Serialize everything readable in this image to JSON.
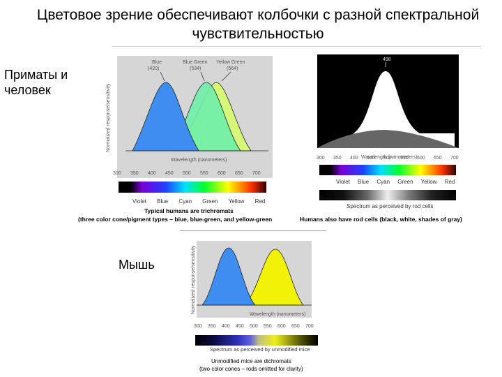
{
  "title": "Цветовое зрение обеспечивают колбочки с разной спектральной чувствительностью",
  "labels": {
    "primates": "Приматы и человек",
    "mouse": "Мышь"
  },
  "panel1": {
    "ylabel": "Normalized response/sensitivity",
    "xlabel": "Wavelength (nanometers)",
    "peaks": [
      {
        "name": "Blue",
        "value": "(420)"
      },
      {
        "name": "Blue Green",
        "value": "(534)"
      },
      {
        "name": "Yellow Green",
        "value": "(564)"
      }
    ],
    "ticks": [
      "300",
      "350",
      "400",
      "450",
      "500",
      "550",
      "600",
      "650",
      "700"
    ],
    "colors": [
      "Violet",
      "Blue",
      "Cyan",
      "Green",
      "Yellow",
      "Red"
    ],
    "caption1": "Typical humans are trichromats",
    "caption2": "(three color cone/pigment types – blue, blue-green, and yellow-green"
  },
  "panel2": {
    "peak": "498",
    "xlabel": "Wavelength (nanometers)",
    "ticks": [
      "300",
      "350",
      "400",
      "450",
      "500",
      "550",
      "600",
      "650",
      "700"
    ],
    "colors": [
      "Violet",
      "Blue",
      "Cyan",
      "Green",
      "Yellow",
      "Red"
    ],
    "caption_spectrum": "Spectrum as perceived by rod cells",
    "caption": "Humans also have rod cells (black, white, shades of gray)"
  },
  "panel3": {
    "ylabel": "Normalized response/sensitivity",
    "xlabel": "Wavelength (nanometers)",
    "ticks": [
      "300",
      "350",
      "400",
      "450",
      "500",
      "550",
      "600",
      "650",
      "700"
    ],
    "spectrum_caption": "Spectrum as perceived by unmodified mice",
    "caption1": "Unmodified mice are dichromats",
    "caption2": "(two color cones – rods omitted for clarity)"
  },
  "colors": {
    "blue": "#3d8ef0",
    "bluegreen": "#6ff0a8",
    "yellowgreen": "#d6f77a",
    "yellow": "#f2f207",
    "panel_bg": "#d6d6d6"
  }
}
